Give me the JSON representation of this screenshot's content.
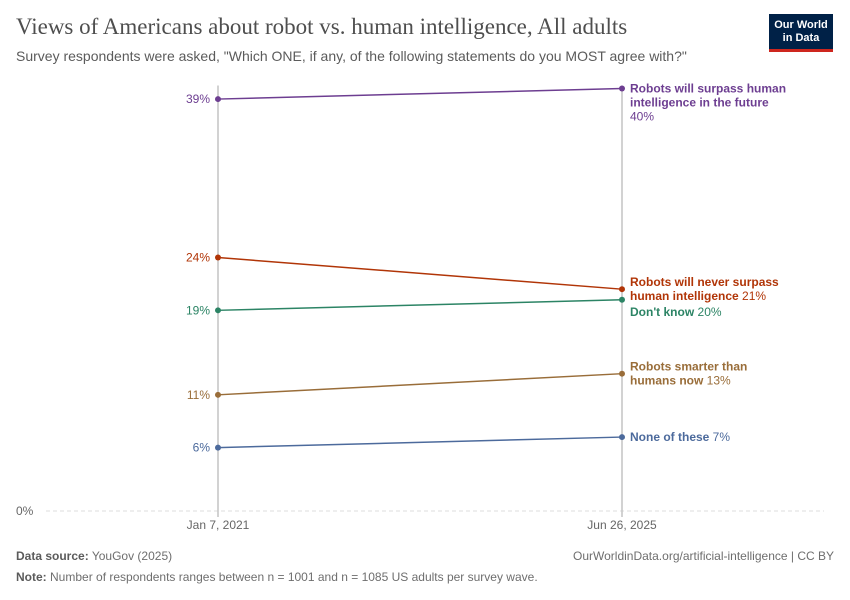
{
  "header": {
    "title": "Views of Americans about robot vs. human intelligence, All adults",
    "subtitle": "Survey respondents were asked, \"Which ONE, if any, of the following statements do you MOST agree with?\"",
    "logo": "Our World in Data"
  },
  "chart_data": {
    "type": "line",
    "categories": [
      "Jan 7, 2021",
      "Jun 26, 2025"
    ],
    "ylim": [
      0,
      40
    ],
    "y_unit": "%",
    "y_ticks": [
      "0%"
    ],
    "grid": false,
    "legend": "right (inline labels)",
    "series": [
      {
        "name": "Robots will surpass human intelligence in the future",
        "label_lines": [
          "Robots will surpass human",
          "intelligence in the future"
        ],
        "values": [
          39,
          40
        ],
        "color": "#6d3e91"
      },
      {
        "name": "Robots will never surpass human intelligence",
        "label_lines": [
          "Robots will never surpass",
          "human intelligence"
        ],
        "values": [
          24,
          21
        ],
        "color": "#b13507"
      },
      {
        "name": "Don't know",
        "label_lines": [
          "Don't know"
        ],
        "values": [
          19,
          20
        ],
        "color": "#2c8465"
      },
      {
        "name": "Robots smarter than humans now",
        "label_lines": [
          "Robots smarter than",
          "humans now"
        ],
        "values": [
          11,
          13
        ],
        "color": "#996d39"
      },
      {
        "name": "None of these",
        "label_lines": [
          "None of these"
        ],
        "values": [
          6,
          7
        ],
        "color": "#4c6a9c"
      }
    ]
  },
  "footer": {
    "source_label": "Data source:",
    "source": "YouGov (2025)",
    "url": "OurWorldinData.org/artificial-intelligence | CC BY",
    "note_label": "Note:",
    "note": "Number of respondents ranges between n = 1001 and n = 1085 US adults per survey wave."
  }
}
